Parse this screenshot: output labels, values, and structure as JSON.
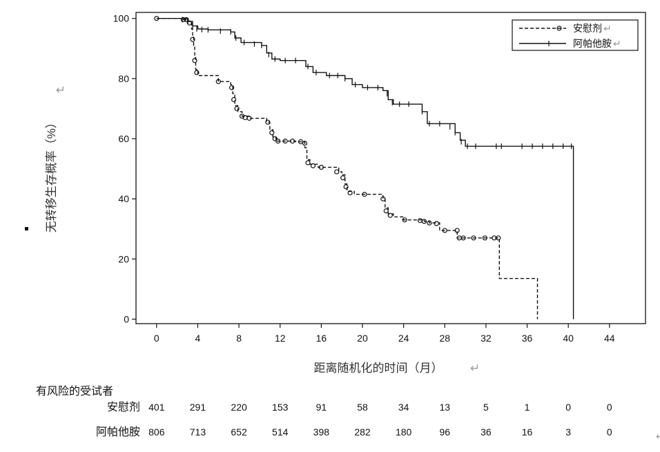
{
  "chart_data": {
    "type": "line",
    "subtype": "kaplan-meier",
    "xlabel": "距离随机化的时间（月）",
    "ylabel": "无转移生存概率（%）",
    "xlim": [
      -2,
      47.5
    ],
    "ylim": [
      -1.5,
      102
    ],
    "xticks": [
      0,
      4,
      8,
      12,
      16,
      20,
      24,
      28,
      32,
      36,
      40,
      44
    ],
    "yticks": [
      0,
      20,
      40,
      60,
      80,
      100
    ],
    "grid": false,
    "legend_position": "top-right",
    "series": [
      {
        "name": "安慰剂",
        "line_style": "dashed",
        "marker": "circle",
        "color": "#111111",
        "steps": [
          [
            0,
            100
          ],
          [
            2.5,
            99.6
          ],
          [
            3.0,
            98.5
          ],
          [
            3.4,
            96.5
          ],
          [
            3.5,
            94
          ],
          [
            3.6,
            91
          ],
          [
            3.7,
            87
          ],
          [
            3.8,
            83
          ],
          [
            4.0,
            81
          ],
          [
            6.0,
            79
          ],
          [
            7.2,
            78
          ],
          [
            7.4,
            75
          ],
          [
            7.6,
            71
          ],
          [
            7.9,
            69
          ],
          [
            8.3,
            67.5
          ],
          [
            9.0,
            66.8
          ],
          [
            10.7,
            65.5
          ],
          [
            11.0,
            63
          ],
          [
            11.3,
            60.5
          ],
          [
            11.6,
            59.2
          ],
          [
            13.5,
            59
          ],
          [
            14.4,
            57
          ],
          [
            14.6,
            53
          ],
          [
            14.9,
            51.5
          ],
          [
            15.7,
            50.5
          ],
          [
            17.7,
            49
          ],
          [
            18.0,
            48
          ],
          [
            18.3,
            45
          ],
          [
            18.5,
            42.5
          ],
          [
            19.2,
            41.5
          ],
          [
            22.0,
            40
          ],
          [
            22.2,
            37
          ],
          [
            22.5,
            35
          ],
          [
            23.0,
            34
          ],
          [
            24.0,
            33
          ],
          [
            26.0,
            32.5
          ],
          [
            26.5,
            32
          ],
          [
            27.5,
            29.5
          ],
          [
            29.2,
            27
          ],
          [
            33.3,
            13.5
          ],
          [
            37.0,
            0
          ]
        ],
        "censored": [
          [
            0,
            100
          ],
          [
            2.6,
            99.6
          ],
          [
            2.9,
            99.6
          ],
          [
            3.2,
            98.5
          ],
          [
            3.5,
            93
          ],
          [
            3.7,
            86
          ],
          [
            3.9,
            82
          ],
          [
            6.0,
            79
          ],
          [
            7.3,
            77
          ],
          [
            7.5,
            73
          ],
          [
            7.8,
            70
          ],
          [
            8.3,
            67.5
          ],
          [
            8.6,
            67
          ],
          [
            9.0,
            66.8
          ],
          [
            10.8,
            65.5
          ],
          [
            11.2,
            62
          ],
          [
            11.5,
            60
          ],
          [
            11.8,
            59.2
          ],
          [
            12.5,
            59.2
          ],
          [
            13.2,
            59.2
          ],
          [
            14.0,
            59
          ],
          [
            14.4,
            58.5
          ],
          [
            14.7,
            52
          ],
          [
            15.2,
            51
          ],
          [
            16.0,
            50.5
          ],
          [
            17.5,
            49
          ],
          [
            18.1,
            47
          ],
          [
            18.4,
            44
          ],
          [
            18.8,
            42
          ],
          [
            20.2,
            41.5
          ],
          [
            22.0,
            40
          ],
          [
            22.3,
            36
          ],
          [
            22.7,
            34.5
          ],
          [
            24.1,
            33
          ],
          [
            25.6,
            32.8
          ],
          [
            26.0,
            32.5
          ],
          [
            26.5,
            32
          ],
          [
            27.2,
            31.8
          ],
          [
            28.0,
            29.5
          ],
          [
            29.2,
            29.5
          ],
          [
            29.4,
            27
          ],
          [
            29.8,
            27
          ],
          [
            30.8,
            27
          ],
          [
            31.9,
            27
          ],
          [
            32.8,
            27
          ],
          [
            33.2,
            27
          ]
        ],
        "at_risk": [
          401,
          291,
          220,
          153,
          91,
          58,
          34,
          13,
          5,
          1,
          0,
          0
        ]
      },
      {
        "name": "阿帕他胺",
        "line_style": "solid",
        "marker": "plus",
        "color": "#111111",
        "steps": [
          [
            0,
            100
          ],
          [
            3.0,
            99
          ],
          [
            3.5,
            97.5
          ],
          [
            4.0,
            96.5
          ],
          [
            5.0,
            96.2
          ],
          [
            7.2,
            95.5
          ],
          [
            7.6,
            93.5
          ],
          [
            8.2,
            92
          ],
          [
            10.2,
            91
          ],
          [
            10.7,
            88.5
          ],
          [
            11.2,
            86.5
          ],
          [
            12.0,
            86
          ],
          [
            14.5,
            84
          ],
          [
            15.2,
            82
          ],
          [
            16.5,
            81
          ],
          [
            18.3,
            80
          ],
          [
            19.0,
            78
          ],
          [
            20.0,
            77
          ],
          [
            22.0,
            76
          ],
          [
            22.5,
            73
          ],
          [
            23.0,
            71.5
          ],
          [
            25.8,
            69
          ],
          [
            26.3,
            65
          ],
          [
            29.0,
            62
          ],
          [
            29.5,
            59.5
          ],
          [
            30.0,
            57.5
          ],
          [
            40.5,
            0
          ]
        ],
        "censored": [
          [
            2.5,
            99.6
          ],
          [
            3.0,
            99
          ],
          [
            3.5,
            97.5
          ],
          [
            3.9,
            96.5
          ],
          [
            4.4,
            96.3
          ],
          [
            5.0,
            96.2
          ],
          [
            6.2,
            95.8
          ],
          [
            7.2,
            95.5
          ],
          [
            7.7,
            93.5
          ],
          [
            8.5,
            92
          ],
          [
            9.5,
            91.5
          ],
          [
            10.2,
            91
          ],
          [
            10.9,
            88
          ],
          [
            11.5,
            86.5
          ],
          [
            12.5,
            86
          ],
          [
            13.5,
            86
          ],
          [
            14.7,
            84
          ],
          [
            15.5,
            82
          ],
          [
            16.8,
            81
          ],
          [
            17.6,
            81
          ],
          [
            18.3,
            80
          ],
          [
            19.3,
            78
          ],
          [
            20.5,
            77
          ],
          [
            21.5,
            77
          ],
          [
            22.4,
            75
          ],
          [
            22.9,
            72
          ],
          [
            23.6,
            71.5
          ],
          [
            24.5,
            71.5
          ],
          [
            25.8,
            69
          ],
          [
            26.5,
            65
          ],
          [
            27.5,
            65
          ],
          [
            28.5,
            64
          ],
          [
            29.0,
            62
          ],
          [
            29.6,
            59
          ],
          [
            30.2,
            57.5
          ],
          [
            31.0,
            57.5
          ],
          [
            33.0,
            57.5
          ],
          [
            33.5,
            57.5
          ],
          [
            35.5,
            57.5
          ],
          [
            36.5,
            57.5
          ],
          [
            37.5,
            57.5
          ],
          [
            38.5,
            57.5
          ],
          [
            39.5,
            57.5
          ],
          [
            40.3,
            57.5
          ]
        ],
        "at_risk": [
          806,
          713,
          652,
          514,
          398,
          282,
          180,
          96,
          36,
          16,
          3,
          0
        ]
      }
    ],
    "risk_table": {
      "title": "有风险的受试者",
      "times": [
        0,
        4,
        8,
        12,
        16,
        20,
        24,
        28,
        32,
        36,
        40,
        44
      ]
    }
  }
}
